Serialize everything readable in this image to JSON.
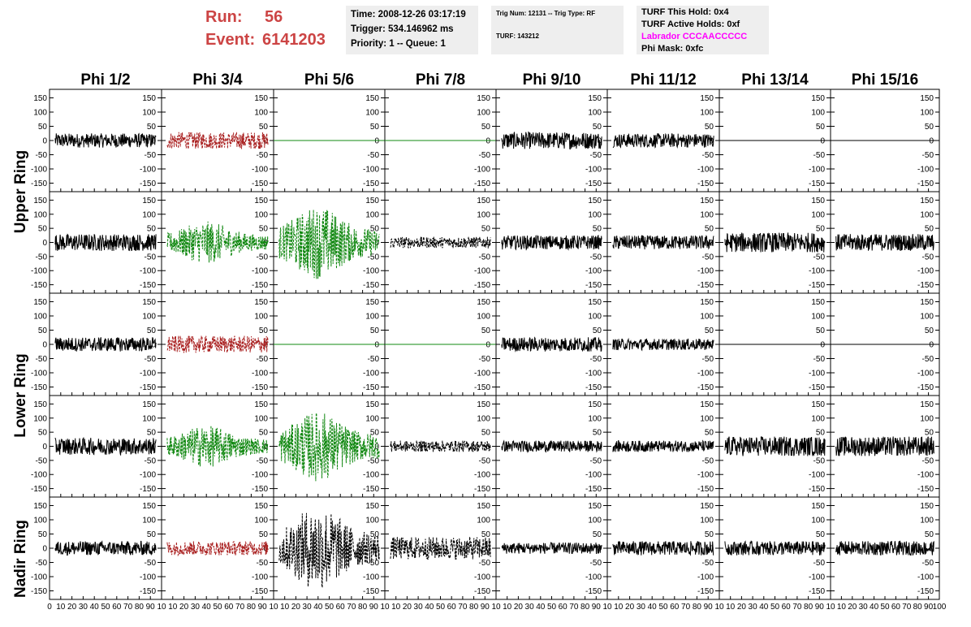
{
  "header": {
    "run_label": "Run:",
    "run_value": "56",
    "event_label": "Event:",
    "event_value": "6141203",
    "accent_color": "#cc4444",
    "time": "Time: 2008-12-26 03:17:19",
    "trigger": "Trigger: 534.146962 ms",
    "priority": "Priority: 1 -- Queue: 1",
    "trig_num": "Trig Num: 12131 -- Trig Type: RF",
    "turf": "TURF: 143212",
    "turf_this_hold": "TURF This Hold: 0x4",
    "turf_active_holds": "TURF Active Holds: 0xf",
    "labrador": "Labrador CCCAACCCCC",
    "labrador_color": "#ff00ff",
    "phi_mask": "Phi Mask: 0xfc"
  },
  "chart_data": {
    "type": "line",
    "columns": [
      "Phi 1/2",
      "Phi 3/4",
      "Phi 5/6",
      "Phi 7/8",
      "Phi 9/10",
      "Phi 11/12",
      "Phi 13/14",
      "Phi 15/16"
    ],
    "row_labels": [
      "Upper Ring",
      "Lower Ring",
      "Nadir Ring"
    ],
    "ylim": [
      -180,
      180
    ],
    "yticks": [
      -150,
      -100,
      -50,
      0,
      50,
      100,
      150
    ],
    "xlim": [
      0,
      100
    ],
    "xtick_labels": [
      [
        "0",
        "10",
        "20",
        "30",
        "40",
        "50",
        "60",
        "70",
        "80",
        "90",
        "10"
      ],
      [
        "10",
        "20",
        "30",
        "40",
        "50",
        "60",
        "70",
        "80",
        "90",
        "10"
      ],
      [
        "10",
        "20",
        "30",
        "40",
        "50",
        "60",
        "70",
        "80",
        "90",
        "10"
      ],
      [
        "10",
        "20",
        "30",
        "40",
        "50",
        "60",
        "70",
        "80",
        "90",
        "10"
      ],
      [
        "10",
        "20",
        "30",
        "40",
        "50",
        "60",
        "70",
        "80",
        "90",
        "10"
      ],
      [
        "10",
        "20",
        "30",
        "40",
        "50",
        "60",
        "70",
        "80",
        "90",
        "10"
      ],
      [
        "10",
        "20",
        "30",
        "40",
        "50",
        "60",
        "70",
        "80",
        "90",
        "10"
      ],
      [
        "10",
        "20",
        "30",
        "40",
        "50",
        "60",
        "70",
        "80",
        "90",
        "100"
      ]
    ],
    "grid": false,
    "colors": {
      "normal": "#000000",
      "red": "#aa2222",
      "green": "#118811"
    },
    "panels": [
      [
        {
          "c": "normal",
          "a": 25,
          "d": 0
        },
        {
          "c": "red",
          "a": 30,
          "d": 1
        },
        {
          "c": "green",
          "a": 0,
          "d": 0
        },
        {
          "c": "green",
          "a": 0,
          "d": 0
        },
        {
          "c": "normal",
          "a": 30,
          "d": 0
        },
        {
          "c": "normal",
          "a": 25,
          "d": 0
        },
        {
          "c": "normal",
          "a": 0,
          "d": 0
        },
        {
          "c": "normal",
          "a": 0,
          "d": 0
        }
      ],
      [
        {
          "c": "normal",
          "a": 30,
          "d": 0
        },
        {
          "c": "green",
          "a": 75,
          "d": 1
        },
        {
          "c": "green",
          "a": 130,
          "d": 1
        },
        {
          "c": "normal",
          "a": 20,
          "d": 1
        },
        {
          "c": "normal",
          "a": 25,
          "d": 0
        },
        {
          "c": "normal",
          "a": 25,
          "d": 0
        },
        {
          "c": "normal",
          "a": 35,
          "d": 0
        },
        {
          "c": "normal",
          "a": 30,
          "d": 0
        }
      ],
      [
        {
          "c": "normal",
          "a": 25,
          "d": 0
        },
        {
          "c": "red",
          "a": 30,
          "d": 1
        },
        {
          "c": "green",
          "a": 0,
          "d": 0
        },
        {
          "c": "green",
          "a": 0,
          "d": 0
        },
        {
          "c": "normal",
          "a": 25,
          "d": 0
        },
        {
          "c": "normal",
          "a": 20,
          "d": 0
        },
        {
          "c": "normal",
          "a": 0,
          "d": 0
        },
        {
          "c": "normal",
          "a": 0,
          "d": 0
        }
      ],
      [
        {
          "c": "normal",
          "a": 30,
          "d": 0
        },
        {
          "c": "green",
          "a": 75,
          "d": 1
        },
        {
          "c": "green",
          "a": 125,
          "d": 1
        },
        {
          "c": "normal",
          "a": 20,
          "d": 1
        },
        {
          "c": "normal",
          "a": 20,
          "d": 0
        },
        {
          "c": "normal",
          "a": 20,
          "d": 0
        },
        {
          "c": "normal",
          "a": 35,
          "d": 0
        },
        {
          "c": "normal",
          "a": 35,
          "d": 0
        }
      ],
      [
        {
          "c": "normal",
          "a": 25,
          "d": 0
        },
        {
          "c": "red",
          "a": 25,
          "d": 1
        },
        {
          "c": "normal",
          "a": 150,
          "d": 1
        },
        {
          "c": "normal",
          "a": 40,
          "d": 1
        },
        {
          "c": "normal",
          "a": 20,
          "d": 0
        },
        {
          "c": "normal",
          "a": 25,
          "d": 0
        },
        {
          "c": "normal",
          "a": 25,
          "d": 0
        },
        {
          "c": "normal",
          "a": 25,
          "d": 0
        }
      ]
    ]
  }
}
